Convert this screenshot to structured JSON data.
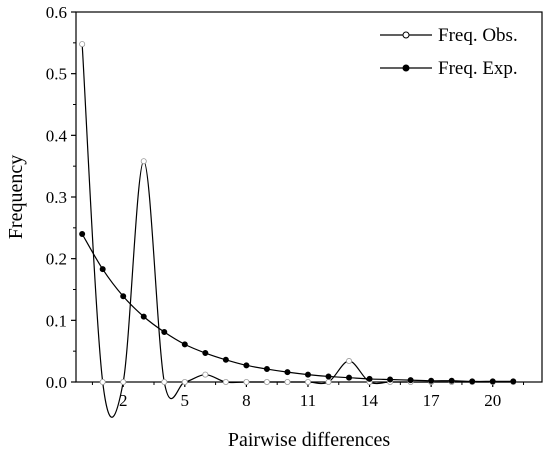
{
  "chart_data": {
    "type": "line",
    "xlabel": "Pairwise differences",
    "ylabel": "Frequency",
    "xlim": [
      -0.3,
      22.4
    ],
    "ylim": [
      0,
      0.6
    ],
    "x_ticks": [
      2,
      5,
      8,
      11,
      14,
      17,
      20
    ],
    "y_ticks": [
      0.0,
      0.1,
      0.2,
      0.3,
      0.4,
      0.5,
      0.6
    ],
    "x_tick_labels": [
      "2",
      "5",
      "8",
      "11",
      "14",
      "17",
      "20"
    ],
    "y_tick_labels": [
      "0.0",
      "0.1",
      "0.2",
      "0.3",
      "0.4",
      "0.5",
      "0.6"
    ],
    "legend_position": "top-right",
    "series": [
      {
        "name": "Freq. Obs.",
        "marker": "open-circle",
        "curve": "smooth",
        "x": [
          0,
          1,
          2,
          3,
          4,
          5,
          6,
          7,
          8,
          9,
          10,
          11,
          12,
          13,
          14,
          15,
          16,
          17,
          18,
          19,
          20,
          21
        ],
        "values": [
          0.548,
          0.0,
          0.0,
          0.358,
          0.0,
          0.0,
          0.012,
          0.0,
          0.0,
          0.0,
          0.0,
          0.0,
          0.0,
          0.034,
          0.0,
          0.0,
          0.0,
          0.0,
          0.0,
          0.0,
          0.0,
          0.0
        ]
      },
      {
        "name": "Freq. Exp.",
        "marker": "filled-circle",
        "curve": "smooth",
        "x": [
          0,
          1,
          2,
          3,
          4,
          5,
          6,
          7,
          8,
          9,
          10,
          11,
          12,
          13,
          14,
          15,
          16,
          17,
          18,
          19,
          20,
          21
        ],
        "values": [
          0.24,
          0.183,
          0.139,
          0.106,
          0.081,
          0.061,
          0.047,
          0.036,
          0.027,
          0.021,
          0.016,
          0.012,
          0.009,
          0.007,
          0.005,
          0.004,
          0.003,
          0.002,
          0.002,
          0.001,
          0.001,
          0.001
        ]
      }
    ]
  }
}
